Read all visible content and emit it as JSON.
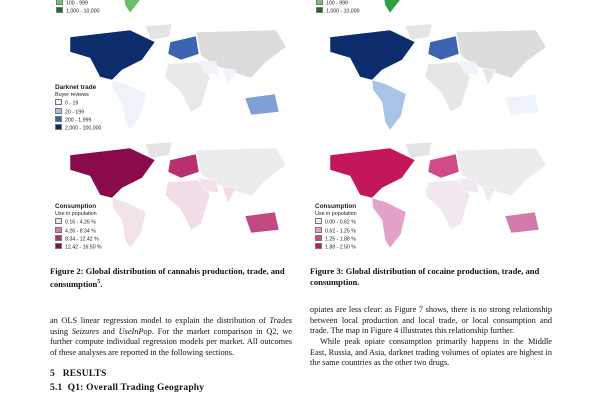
{
  "figure2": {
    "production_legend": [
      "100 - 999",
      "1,000 - 10,000"
    ],
    "trade": {
      "title": "Darknet trade",
      "subtitle": "Buyer reviews",
      "legend": [
        "0 - 19",
        "20 - 199",
        "200 - 1,999",
        "2,000 - 100,000"
      ]
    },
    "consumption": {
      "title": "Consumption",
      "subtitle": "Use in population",
      "legend": [
        "0.16 - 4.26 %",
        "4.26 - 8.34 %",
        "8.34 - 12.42 %",
        "12.42 - 16.50 %"
      ]
    },
    "caption": [
      "Figure 2: Global distribution of cannabis production, trade, and consumption",
      "5",
      "."
    ]
  },
  "figure3": {
    "production_legend": [
      "100 - 999",
      "1,000 - 10,000"
    ],
    "consumption": {
      "title": "Consumption",
      "subtitle": "Use in population",
      "legend": [
        "0.00 - 0.62 %",
        "0.62 - 1.25 %",
        "1.25 - 1.88 %",
        "1.88 - 2.50 %"
      ]
    },
    "caption": "Figure 3: Global distribution of cocaine production, trade, and consumption."
  },
  "body": {
    "left_paragraph": [
      "an OLS linear regression model to explain the distribution of ",
      "Trades",
      " using ",
      "Seizures",
      " and ",
      "UseInPop",
      ". For the market comparison in Q2, we further compute individual regression models per market. All outcomes of these analyses are reported in the following sections."
    ],
    "section": {
      "number": "5",
      "title": "RESULTS"
    },
    "subsection": {
      "number": "5.1",
      "title": "Q1: Overall Trading Geography"
    },
    "right_paragraphs": [
      "opiates are less clear: as Figure 7 shows, there is no strong relationship between local production and local trade, or local consumption and trade. The map in Figure 4 illustrates this relationship further.",
      "While peak opiate consumption primarily happens in the Middle East, Russia, and Asia, darknet trading volumes of opiates are highest in the same countries as the other two drugs."
    ]
  }
}
